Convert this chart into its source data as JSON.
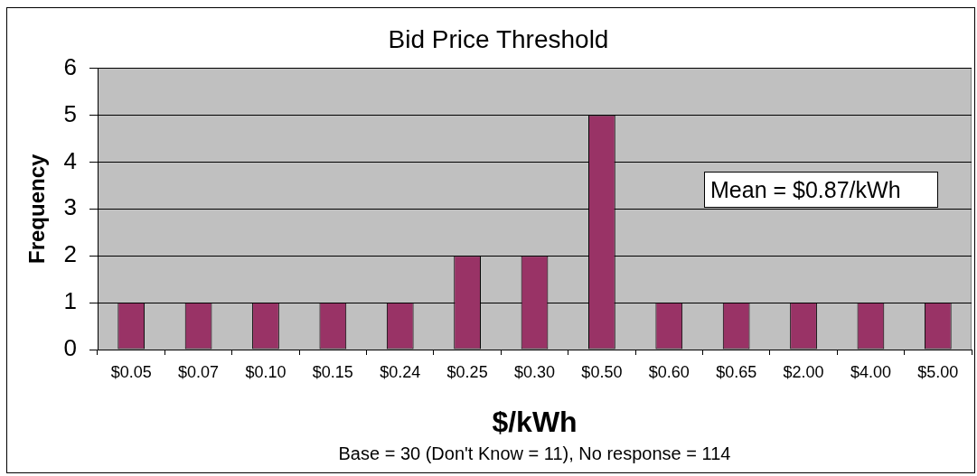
{
  "chart_data": {
    "type": "bar",
    "title": "Bid Price Threshold",
    "xlabel": "$/kWh",
    "ylabel": "Frequency",
    "categories": [
      "$0.05",
      "$0.07",
      "$0.10",
      "$0.15",
      "$0.24",
      "$0.25",
      "$0.30",
      "$0.50",
      "$0.60",
      "$0.65",
      "$2.00",
      "$4.00",
      "$5.00"
    ],
    "values": [
      1,
      1,
      1,
      1,
      1,
      2,
      2,
      5,
      1,
      1,
      1,
      1,
      1
    ],
    "color": "#993366",
    "ylim": [
      0,
      6
    ],
    "yticks": [
      0,
      1,
      2,
      3,
      4,
      5,
      6
    ],
    "grid": "y",
    "annotations": [
      "Mean = $0.87/kWh",
      "Base = 30 (Don't Know = 11), No response = 114"
    ]
  }
}
